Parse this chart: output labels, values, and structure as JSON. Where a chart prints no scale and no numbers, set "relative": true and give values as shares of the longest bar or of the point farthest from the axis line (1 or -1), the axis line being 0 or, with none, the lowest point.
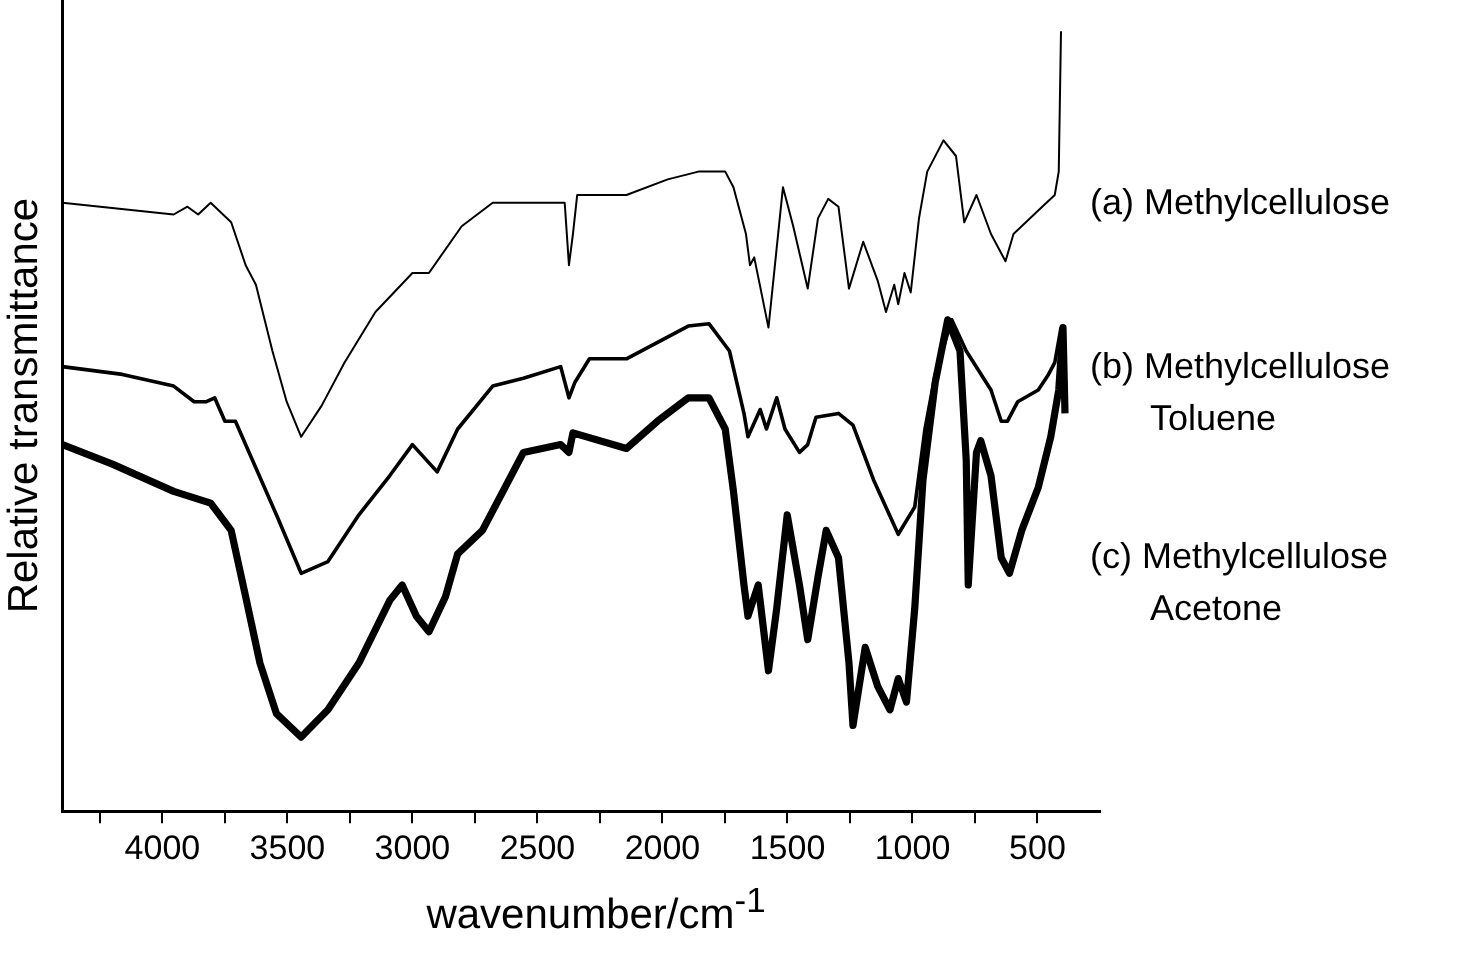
{
  "chart_data": {
    "type": "line",
    "relative": true,
    "xlabel": "wavenumber/cm$^{-1}$",
    "ylabel": "Relative transmittance",
    "xlim": [
      4400,
      250
    ],
    "xticks": [
      {
        "value": 4250,
        "label": null
      },
      4000,
      {
        "value": 3750,
        "label": null
      },
      3500,
      {
        "value": 3250,
        "label": null
      },
      3000,
      {
        "value": 2750,
        "label": null
      },
      2500,
      {
        "value": 2250,
        "label": null
      },
      2000,
      {
        "value": 1750,
        "label": null
      },
      1500,
      {
        "value": 1250,
        "label": null
      },
      1000,
      {
        "value": 750,
        "label": null
      },
      500
    ],
    "grid": false,
    "legend": false,
    "marker": "none",
    "series": [
      {
        "name": "(a) Methylcellulose",
        "color": "#000000",
        "x": [
          4400,
          3955,
          3900,
          3857,
          3807,
          3725,
          3667,
          3626,
          3560,
          3503,
          3445,
          3363,
          3272,
          3148,
          3000,
          2934,
          2803,
          2679,
          2556,
          2391,
          2374,
          2358,
          2341,
          2144,
          1979,
          1856,
          1749,
          1716,
          1666,
          1650,
          1633,
          1576,
          1518,
          1477,
          1419,
          1378,
          1337,
          1296,
          1254,
          1197,
          1139,
          1106,
          1073,
          1057,
          1032,
          1007,
          974,
          941,
          876,
          826,
          793,
          744,
          686,
          628,
          596,
          497,
          431,
          415,
          406
        ],
        "values": [
          0.78,
          0.765,
          0.775,
          0.765,
          0.78,
          0.755,
          0.7,
          0.675,
          0.59,
          0.525,
          0.48,
          0.52,
          0.575,
          0.64,
          0.69,
          0.69,
          0.75,
          0.78,
          0.78,
          0.78,
          0.7,
          0.74,
          0.79,
          0.79,
          0.81,
          0.82,
          0.82,
          0.8,
          0.74,
          0.7,
          0.71,
          0.62,
          0.8,
          0.75,
          0.67,
          0.76,
          0.785,
          0.775,
          0.67,
          0.73,
          0.68,
          0.64,
          0.675,
          0.65,
          0.69,
          0.665,
          0.76,
          0.82,
          0.86,
          0.84,
          0.755,
          0.79,
          0.74,
          0.705,
          0.74,
          0.77,
          0.79,
          0.82,
          1.0
        ]
      },
      {
        "name": "(b) Methylcellulose\nToluene",
        "color": "#000000",
        "x": [
          4400,
          4160,
          3955,
          3873,
          3824,
          3791,
          3750,
          3708,
          3626,
          3544,
          3445,
          3338,
          3214,
          3091,
          3000,
          2901,
          2819,
          2679,
          2556,
          2407,
          2374,
          2350,
          2292,
          2144,
          1897,
          1814,
          1732,
          1674,
          1658,
          1609,
          1584,
          1543,
          1510,
          1452,
          1419,
          1386,
          1296,
          1238,
          1156,
          1057,
          991,
          950,
          909,
          843,
          785,
          686,
          645,
          620,
          579,
          497,
          456,
          431,
          406
        ],
        "values": [
          0.57,
          0.56,
          0.545,
          0.525,
          0.525,
          0.53,
          0.5,
          0.5,
          0.44,
          0.38,
          0.305,
          0.32,
          0.38,
          0.43,
          0.47,
          0.435,
          0.49,
          0.545,
          0.555,
          0.57,
          0.53,
          0.55,
          0.58,
          0.58,
          0.622,
          0.625,
          0.59,
          0.51,
          0.48,
          0.515,
          0.49,
          0.53,
          0.49,
          0.46,
          0.47,
          0.505,
          0.51,
          0.495,
          0.425,
          0.355,
          0.39,
          0.49,
          0.56,
          0.63,
          0.59,
          0.54,
          0.5,
          0.5,
          0.525,
          0.54,
          0.56,
          0.575,
          0.62
        ]
      },
      {
        "name": "(c) Methylcellulose\nAcetone",
        "color": "#000000",
        "x": [
          4400,
          4200,
          3955,
          3807,
          3725,
          3667,
          3610,
          3544,
          3445,
          3338,
          3214,
          3091,
          3041,
          2984,
          2934,
          2868,
          2819,
          2720,
          2556,
          2407,
          2374,
          2358,
          2144,
          2020,
          1897,
          1814,
          1749,
          1716,
          1674,
          1658,
          1617,
          1576,
          1543,
          1501,
          1452,
          1419,
          1378,
          1345,
          1296,
          1254,
          1238,
          1189,
          1139,
          1090,
          1057,
          1024,
          991,
          958,
          909,
          859,
          810,
          785,
          777,
          744,
          727,
          686,
          645,
          612,
          563,
          497,
          447,
          415,
          398,
          390
        ],
        "values": [
          0.47,
          0.445,
          0.41,
          0.395,
          0.36,
          0.275,
          0.19,
          0.125,
          0.095,
          0.13,
          0.19,
          0.27,
          0.29,
          0.25,
          0.23,
          0.275,
          0.33,
          0.36,
          0.46,
          0.47,
          0.46,
          0.485,
          0.465,
          0.5,
          0.53,
          0.53,
          0.49,
          0.41,
          0.29,
          0.25,
          0.29,
          0.18,
          0.26,
          0.38,
          0.29,
          0.22,
          0.3,
          0.36,
          0.325,
          0.19,
          0.11,
          0.21,
          0.16,
          0.13,
          0.17,
          0.14,
          0.26,
          0.425,
          0.55,
          0.63,
          0.59,
          0.45,
          0.29,
          0.46,
          0.475,
          0.43,
          0.325,
          0.305,
          0.36,
          0.415,
          0.48,
          0.54,
          0.62,
          0.51
        ]
      }
    ]
  }
}
